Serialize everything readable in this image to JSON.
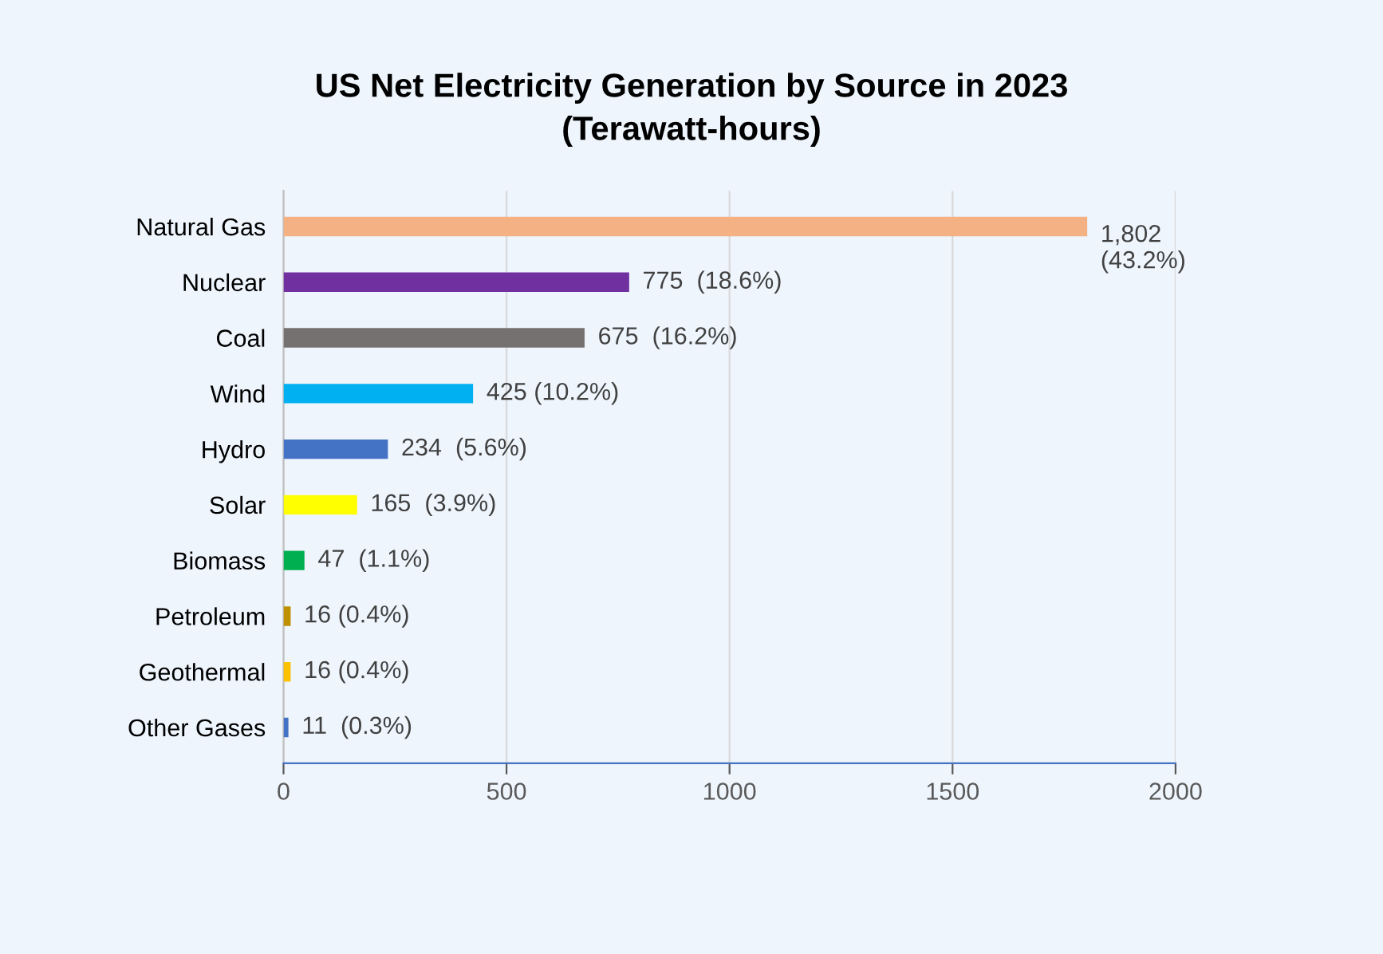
{
  "chart_data": {
    "type": "bar",
    "orientation": "horizontal",
    "title": "US Net Electricity Generation by Source in 2023\n(Terawatt-hours)",
    "categories": [
      "Natural Gas",
      "Nuclear",
      "Coal",
      "Wind",
      "Hydro",
      "Solar",
      "Biomass",
      "Petroleum",
      "Geothermal",
      "Other Gases"
    ],
    "values": [
      1802,
      775,
      675,
      425,
      234,
      165,
      47,
      16,
      16,
      11
    ],
    "colors": [
      "#f4b183",
      "#7030a0",
      "#767171",
      "#00b0f0",
      "#4472c4",
      "#ffff00",
      "#00b050",
      "#bf9000",
      "#ffc000",
      "#4472c4"
    ],
    "value_labels": [
      "1,802\n(43.2%)",
      "775  (18.6%)",
      "675  (16.2%)",
      "425 (10.2%)",
      "234  (5.6%)",
      "165  (3.9%)",
      "47  (1.1%)",
      "16 (0.4%)",
      "16 (0.4%)",
      "11  (0.3%)"
    ],
    "xlim": [
      0,
      2000
    ],
    "xticks": [
      0,
      500,
      1000,
      1500,
      2000
    ],
    "grid": "x"
  }
}
